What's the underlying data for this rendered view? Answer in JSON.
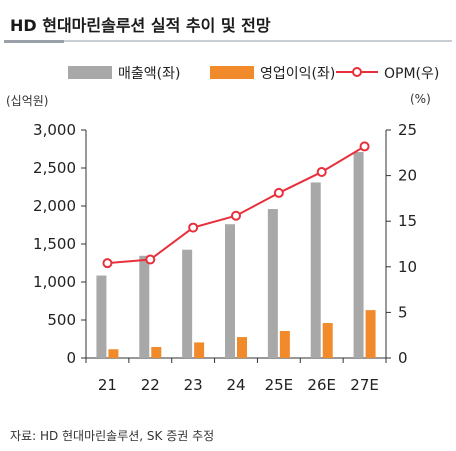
{
  "title": "HD 현대마린솔루션 실적 추이 및 전망",
  "left_unit": "(십억원)",
  "right_unit": "(%)",
  "source": "자료: HD 현대마린솔루션, SK 증권 추정",
  "colors": {
    "revenue": "#a8a8a8",
    "op_profit": "#f08a2a",
    "opm": "#e8303d",
    "axis": "#333333"
  },
  "chart_data": {
    "type": "bar",
    "categories": [
      "21",
      "22",
      "23",
      "24",
      "25E",
      "26E",
      "27E"
    ],
    "series": [
      {
        "name": "매출액(좌)",
        "type": "bar",
        "axis": "left",
        "values": [
          1085,
          1345,
          1425,
          1760,
          1960,
          2310,
          2710
        ]
      },
      {
        "name": "영업이익(좌)",
        "type": "bar",
        "axis": "left",
        "values": [
          115,
          145,
          205,
          275,
          355,
          460,
          630
        ]
      },
      {
        "name": "OPM(우)",
        "type": "line",
        "axis": "right",
        "values": [
          10.4,
          10.8,
          14.3,
          15.6,
          18.1,
          20.4,
          23.2
        ]
      }
    ],
    "y_left": {
      "range": [
        0,
        3000
      ],
      "ticks": [
        "0",
        "500",
        "1,000",
        "1,500",
        "2,000",
        "2,500",
        "3,000"
      ]
    },
    "y_right": {
      "range": [
        0,
        25
      ],
      "ticks": [
        "0",
        "5",
        "10",
        "15",
        "20",
        "25"
      ]
    },
    "legend": "top",
    "grid": false
  }
}
